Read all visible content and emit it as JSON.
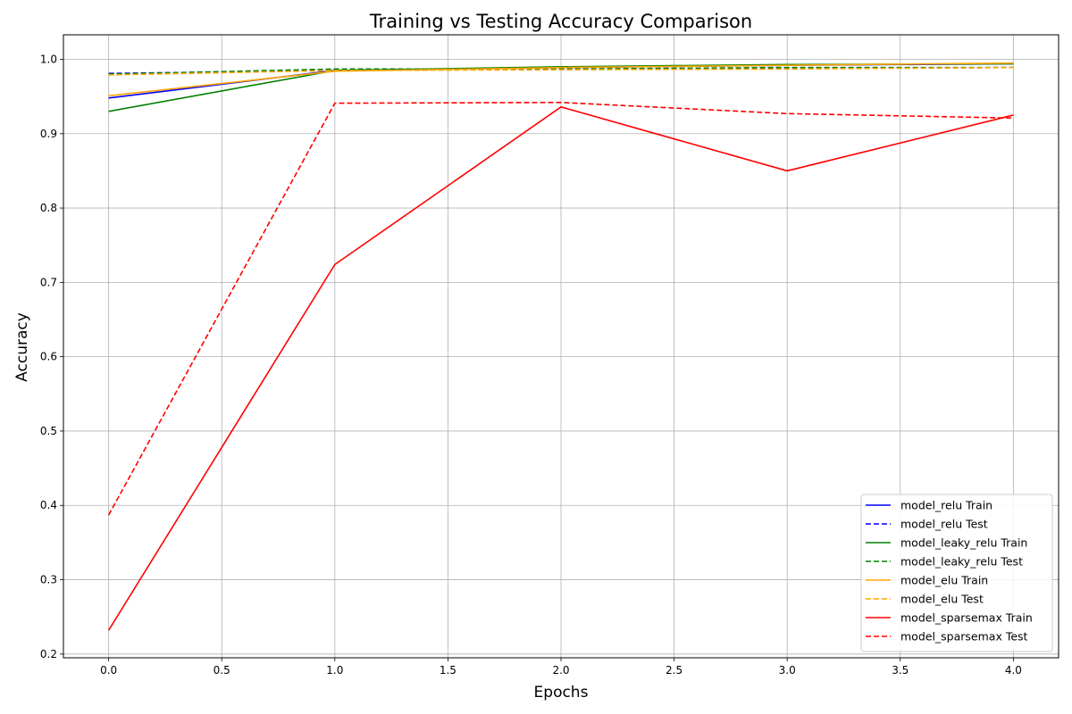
{
  "chart_data": {
    "type": "line",
    "title": "Training vs Testing Accuracy Comparison",
    "xlabel": "Epochs",
    "ylabel": "Accuracy",
    "xlim": [
      -0.2,
      4.2
    ],
    "ylim": [
      0.195,
      1.033
    ],
    "xticks": [
      "0.0",
      "0.5",
      "1.0",
      "1.5",
      "2.0",
      "2.5",
      "3.0",
      "3.5",
      "4.0"
    ],
    "yticks": [
      "0.2",
      "0.3",
      "0.4",
      "0.5",
      "0.6",
      "0.7",
      "0.8",
      "0.9",
      "1.0"
    ],
    "grid": true,
    "legend_position": "lower-right",
    "x": [
      0,
      1,
      2,
      3,
      4
    ],
    "series": [
      {
        "name": "model_relu Train",
        "color": "#0000ff",
        "dash": "solid",
        "values": [
          0.948,
          0.985,
          0.989,
          0.992,
          0.994
        ]
      },
      {
        "name": "model_relu Test",
        "color": "#0000ff",
        "dash": "dashed",
        "values": [
          0.981,
          0.985,
          0.987,
          0.988,
          0.989
        ]
      },
      {
        "name": "model_leaky_relu Train",
        "color": "#008000",
        "dash": "solid",
        "values": [
          0.93,
          0.985,
          0.99,
          0.993,
          0.994
        ]
      },
      {
        "name": "model_leaky_relu Test",
        "color": "#008000",
        "dash": "dashed",
        "values": [
          0.98,
          0.987,
          0.987,
          0.989,
          0.989
        ]
      },
      {
        "name": "model_elu Train",
        "color": "#ffa500",
        "dash": "solid",
        "values": [
          0.951,
          0.984,
          0.989,
          0.992,
          0.995
        ]
      },
      {
        "name": "model_elu Test",
        "color": "#ffa500",
        "dash": "dashed",
        "values": [
          0.979,
          0.985,
          0.986,
          0.987,
          0.989
        ]
      },
      {
        "name": "model_sparsemax Train",
        "color": "#ff0000",
        "dash": "solid",
        "values": [
          0.232,
          0.724,
          0.936,
          0.85,
          0.925
        ]
      },
      {
        "name": "model_sparsemax Test",
        "color": "#ff0000",
        "dash": "dashed",
        "values": [
          0.387,
          0.941,
          0.942,
          0.927,
          0.921
        ]
      }
    ]
  }
}
